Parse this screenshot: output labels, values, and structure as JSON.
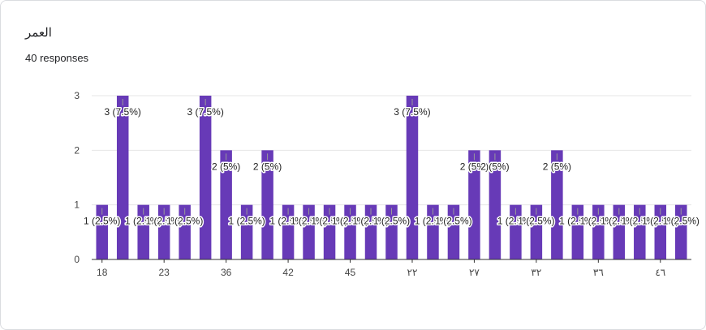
{
  "title": "العمر",
  "subtitle": "40 responses",
  "colors": {
    "bar": "#673ab7",
    "grid": "#e6e6e6",
    "axis": "#333333"
  },
  "chart_data": {
    "type": "bar",
    "title": "العمر",
    "xlabel": "",
    "ylabel": "",
    "ylim": [
      0,
      3
    ],
    "y_ticks": [
      0,
      1,
      2,
      3
    ],
    "grid": true,
    "legend": "none",
    "values": [
      1,
      3,
      1,
      1,
      1,
      3,
      2,
      1,
      2,
      1,
      1,
      1,
      1,
      1,
      1,
      3,
      1,
      1,
      2,
      2,
      1,
      1,
      2,
      1,
      1,
      1,
      1,
      1,
      1
    ],
    "data_labels": [
      "1 (2.5%)",
      "3 (7.5%)",
      "1 (2.5%)",
      "1 (2.5%)",
      "1 (2.5%)",
      "3 (7.5%)",
      "2 (5%)",
      "1 (2.5%)",
      "2 (5%)",
      "1 (2.5%)",
      "1 (2.5%)",
      "1 (2.5%)",
      "1 (2.5%)",
      "1 (2.5%)",
      "1 (2.5%)",
      "3 (7.5%)",
      "1 (2.5%)",
      "1 (2.5%)",
      "2 (5%)",
      "2 (5%)",
      "1 (2.5%)",
      "1 (2.5%)",
      "2 (5%)",
      "1 (2.5%)",
      "1 (2.5%)",
      "1 (2.5%)",
      "1 (2.5%)",
      "1 (2.5%)",
      "1 (2.5%)"
    ],
    "x_tick_labels": [
      {
        "index": 0,
        "label": "18"
      },
      {
        "index": 3,
        "label": "23"
      },
      {
        "index": 6,
        "label": "36"
      },
      {
        "index": 9,
        "label": "42"
      },
      {
        "index": 12,
        "label": "45"
      },
      {
        "index": 15,
        "label": "٢٢"
      },
      {
        "index": 18,
        "label": "٢٧"
      },
      {
        "index": 21,
        "label": "٣٢"
      },
      {
        "index": 24,
        "label": "٣٦"
      },
      {
        "index": 27,
        "label": "٤٦"
      }
    ]
  }
}
